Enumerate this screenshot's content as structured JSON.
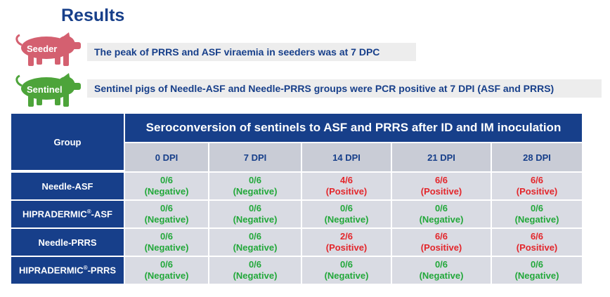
{
  "title": "Results",
  "seeder": {
    "label": "Seeder",
    "note": "The peak of PRRS and ASF viraemia in seeders was at 7 DPC",
    "color": "#d46070"
  },
  "sentinel": {
    "label": "Sentinel",
    "note": "Sentinel pigs of Needle-ASF and Needle-PRRS groups were PCR positive at 7 DPI (ASF and PRRS)",
    "color": "#4da43a"
  },
  "table": {
    "group_header": "Group",
    "main_header": "Seroconversion of sentinels to ASF and PRRS after ID and IM inoculation",
    "columns": [
      "0 DPI",
      "7 DPI",
      "14 DPI",
      "21 DPI",
      "28 DPI"
    ],
    "rows": [
      {
        "name": "Needle-ASF",
        "sup": "",
        "name_suffix": "",
        "cells": [
          {
            "value": "0/6",
            "status": "(Negative)"
          },
          {
            "value": "0/6",
            "status": "(Negative)"
          },
          {
            "value": "4/6",
            "status": "(Positive)"
          },
          {
            "value": "6/6",
            "status": "(Positive)"
          },
          {
            "value": "6/6",
            "status": "(Positive)"
          }
        ]
      },
      {
        "name": "HIPRADERMIC",
        "sup": "®",
        "name_suffix": "-ASF",
        "cells": [
          {
            "value": "0/6",
            "status": "(Negative)"
          },
          {
            "value": "0/6",
            "status": "(Negative)"
          },
          {
            "value": "0/6",
            "status": "(Negative)"
          },
          {
            "value": "0/6",
            "status": "(Negative)"
          },
          {
            "value": "0/6",
            "status": "(Negative)"
          }
        ]
      },
      {
        "name": "Needle-PRRS",
        "sup": "",
        "name_suffix": "",
        "cells": [
          {
            "value": "0/6",
            "status": "(Negative)"
          },
          {
            "value": "0/6",
            "status": "(Negative)"
          },
          {
            "value": "2/6",
            "status": "(Positive)"
          },
          {
            "value": "6/6",
            "status": "(Positive)"
          },
          {
            "value": "6/6",
            "status": "(Positive)"
          }
        ]
      },
      {
        "name": "HIPRADERMIC",
        "sup": "®",
        "name_suffix": "-PRRS",
        "cells": [
          {
            "value": "0/6",
            "status": "(Negative)"
          },
          {
            "value": "0/6",
            "status": "(Negative)"
          },
          {
            "value": "0/6",
            "status": "(Negative)"
          },
          {
            "value": "0/6",
            "status": "(Negative)"
          },
          {
            "value": "0/6",
            "status": "(Negative)"
          }
        ]
      }
    ]
  }
}
